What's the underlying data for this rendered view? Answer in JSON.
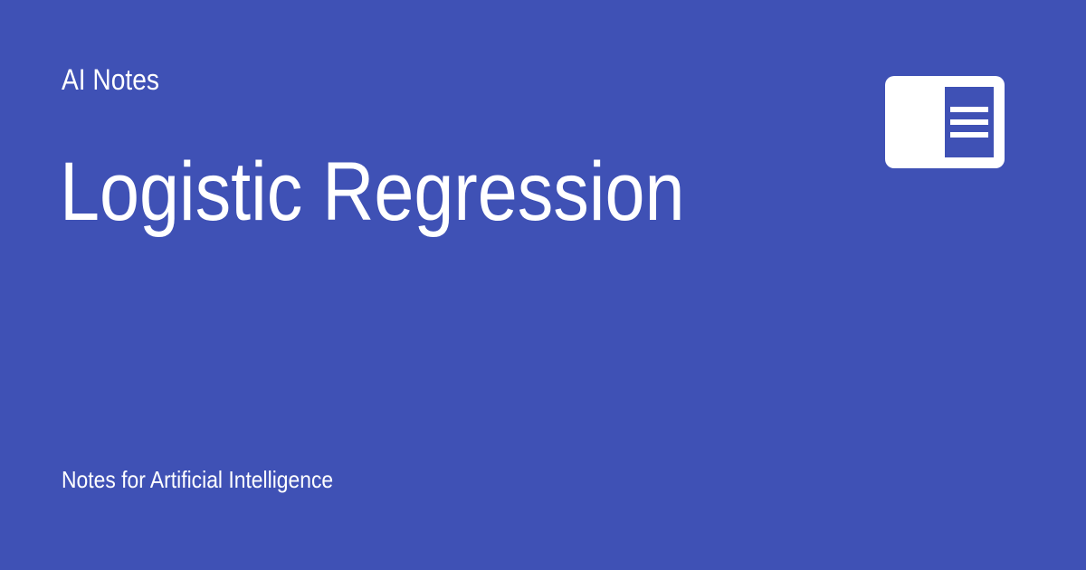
{
  "site": {
    "name": "AI Notes",
    "description": "Notes for Artificial Intelligence"
  },
  "page": {
    "title": "Logistic Regression"
  },
  "logo": {
    "icon": "document-lines-icon"
  },
  "colors": {
    "background": "#3f51b5",
    "text": "#ffffff"
  }
}
